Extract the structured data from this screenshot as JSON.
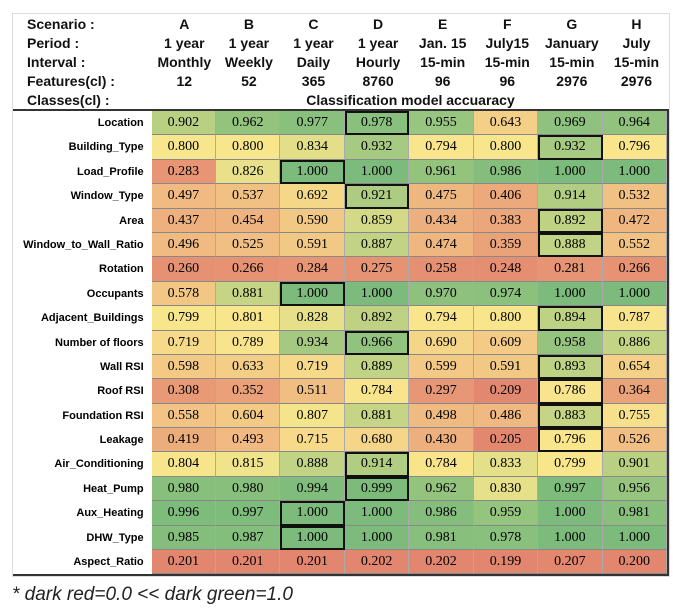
{
  "header": {
    "scenario_label": "Scenario :",
    "period_label": "Period :",
    "interval_label": "Interval :",
    "features_label": "Features(cl) :",
    "classes_label": "Classes(cl) :",
    "classes_value": "Classification model accuaracy",
    "scenarios": [
      "A",
      "B",
      "C",
      "D",
      "E",
      "F",
      "G",
      "H"
    ],
    "periods": [
      "1 year",
      "1 year",
      "1 year",
      "1 year",
      "Jan. 15",
      "July15",
      "January",
      "July"
    ],
    "intervals": [
      "Monthly",
      "Weekly",
      "Daily",
      "Hourly",
      "15-min",
      "15-min",
      "15-min",
      "15-min"
    ],
    "features": [
      "12",
      "52",
      "365",
      "8760",
      "96",
      "96",
      "2976",
      "2976"
    ]
  },
  "chart_data": {
    "type": "heatmap",
    "title": "Classification model accuaracy",
    "columns": [
      "A",
      "B",
      "C",
      "D",
      "E",
      "F",
      "G",
      "H"
    ],
    "rows": [
      {
        "name": "Location",
        "values": [
          0.902,
          0.962,
          0.977,
          0.978,
          0.955,
          0.643,
          0.969,
          0.964
        ],
        "highlight": [
          3
        ]
      },
      {
        "name": "Building_Type",
        "values": [
          0.8,
          0.8,
          0.834,
          0.932,
          0.794,
          0.8,
          0.932,
          0.796
        ],
        "highlight": [
          6
        ]
      },
      {
        "name": "Load_Profile",
        "values": [
          0.283,
          0.826,
          1.0,
          1.0,
          0.961,
          0.986,
          1.0,
          1.0
        ],
        "highlight": [
          2
        ]
      },
      {
        "name": "Window_Type",
        "values": [
          0.497,
          0.537,
          0.692,
          0.921,
          0.475,
          0.406,
          0.914,
          0.532
        ],
        "highlight": [
          3
        ]
      },
      {
        "name": "Area",
        "values": [
          0.437,
          0.454,
          0.59,
          0.859,
          0.434,
          0.383,
          0.892,
          0.472
        ],
        "highlight": [
          6
        ]
      },
      {
        "name": "Window_to_Wall_Ratio",
        "values": [
          0.496,
          0.525,
          0.591,
          0.887,
          0.474,
          0.359,
          0.888,
          0.552
        ],
        "highlight": [
          6
        ]
      },
      {
        "name": "Rotation",
        "values": [
          0.26,
          0.266,
          0.284,
          0.275,
          0.258,
          0.248,
          0.281,
          0.266
        ],
        "highlight": []
      },
      {
        "name": "Occupants",
        "values": [
          0.578,
          0.881,
          1.0,
          1.0,
          0.97,
          0.974,
          1.0,
          1.0
        ],
        "highlight": [
          2
        ]
      },
      {
        "name": "Adjacent_Buildings",
        "values": [
          0.799,
          0.801,
          0.828,
          0.892,
          0.794,
          0.8,
          0.894,
          0.787
        ],
        "highlight": [
          6
        ]
      },
      {
        "name": "Number of floors",
        "values": [
          0.719,
          0.789,
          0.934,
          0.966,
          0.69,
          0.609,
          0.958,
          0.886
        ],
        "highlight": [
          3
        ]
      },
      {
        "name": "Wall RSI",
        "values": [
          0.598,
          0.633,
          0.719,
          0.889,
          0.599,
          0.591,
          0.893,
          0.654
        ],
        "highlight": [
          6
        ]
      },
      {
        "name": "Roof RSI",
        "values": [
          0.308,
          0.352,
          0.511,
          0.784,
          0.297,
          0.209,
          0.786,
          0.364
        ],
        "highlight": [
          6
        ]
      },
      {
        "name": "Foundation RSI",
        "values": [
          0.558,
          0.604,
          0.807,
          0.881,
          0.498,
          0.486,
          0.883,
          0.755
        ],
        "highlight": [
          6
        ]
      },
      {
        "name": "Leakage",
        "values": [
          0.419,
          0.493,
          0.715,
          0.68,
          0.43,
          0.205,
          0.796,
          0.526
        ],
        "highlight": [
          6
        ]
      },
      {
        "name": "Air_Conditioning",
        "values": [
          0.804,
          0.815,
          0.888,
          0.914,
          0.784,
          0.833,
          0.799,
          0.901
        ],
        "highlight": [
          3
        ]
      },
      {
        "name": "Heat_Pump",
        "values": [
          0.98,
          0.98,
          0.994,
          0.999,
          0.962,
          0.83,
          0.997,
          0.956
        ],
        "highlight": [
          3
        ]
      },
      {
        "name": "Aux_Heating",
        "values": [
          0.996,
          0.997,
          1.0,
          1.0,
          0.986,
          0.959,
          1.0,
          0.981
        ],
        "highlight": [
          2
        ]
      },
      {
        "name": "DHW_Type",
        "values": [
          0.985,
          0.987,
          1.0,
          1.0,
          0.981,
          0.978,
          1.0,
          1.0
        ],
        "highlight": [
          2
        ]
      },
      {
        "name": "Aspect_Ratio",
        "values": [
          0.201,
          0.201,
          0.201,
          0.202,
          0.202,
          0.199,
          0.207,
          0.2
        ],
        "highlight": []
      }
    ],
    "color_scale": {
      "low": "#e3866f",
      "mid_low": "#f0bb82",
      "mid": "#f8e68c",
      "high": "#7cbb7b"
    }
  },
  "footnote": "* dark red=0.0 << dark green=1.0"
}
